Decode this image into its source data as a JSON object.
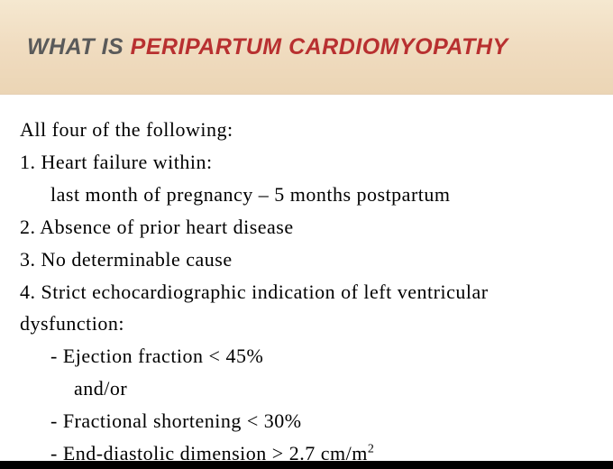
{
  "header": {
    "title_part1": "WHAT  IS  ",
    "title_part2": "PERIPARTUM CARDIOMYOPATHY",
    "bg_gradient_start": "#f5e8d0",
    "bg_gradient_end": "#ebd5b5",
    "text_color_1": "#5a5a5a",
    "text_color_2": "#b83030",
    "font_size": 25
  },
  "content": {
    "intro": "All four of the following:",
    "item1": "1.  Heart  failure  within:",
    "item1_sub": "last  month  of  pregnancy – 5  months  postpartum",
    "item2": "2.  Absence  of  prior  heart  disease",
    "item3": "3.  No  determinable  cause",
    "item4": "4.  Strict  echocardiographic  indication  of  left  ventricular  dysfunction:",
    "item4_sub1": "-   Ejection  fraction  < 45%",
    "item4_sub1b": "and/or",
    "item4_sub2": "-   Fractional  shortening  < 30%",
    "item4_sub3_pre": "-   End-diastolic  dimension  > 2.7  cm/m",
    "item4_sub3_sup": "2",
    "background_color": "#ffffff",
    "text_color": "#000000",
    "font_size": 22,
    "font_family": "Times New Roman"
  }
}
